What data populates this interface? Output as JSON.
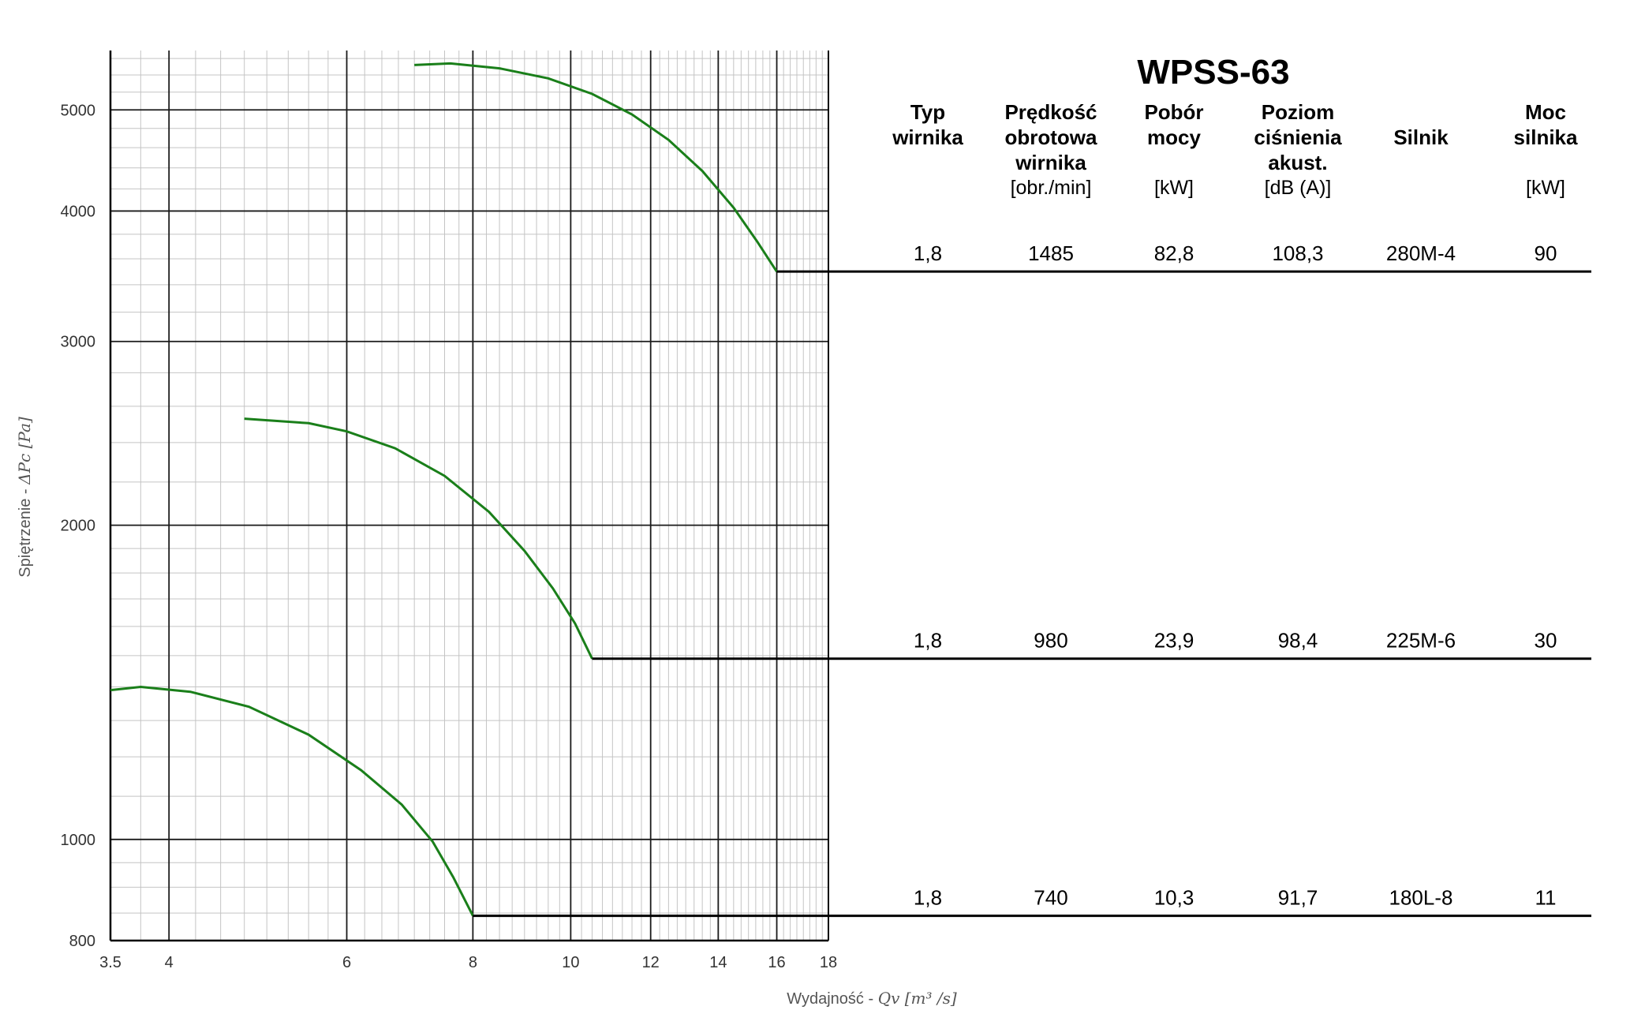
{
  "chart_data": {
    "type": "line",
    "title": "WPSS-63",
    "xlabel_text": "Wydajność - ",
    "xlabel_math": "Qv [m³ /s]",
    "ylabel_text": "Spiętrzenie - ",
    "ylabel_math": "ΔPc [Pa]",
    "x_scale": "log",
    "y_scale": "log",
    "xlim": [
      3.5,
      18
    ],
    "ylim": [
      800,
      5700
    ],
    "x_ticks": [
      3.5,
      4,
      6,
      8,
      10,
      12,
      14,
      16,
      18
    ],
    "x_tick_labels": [
      "3.5",
      "4",
      "6",
      "8",
      "10",
      "12",
      "14",
      "16",
      "18"
    ],
    "y_ticks": [
      800,
      1000,
      2000,
      3000,
      4000,
      5000
    ],
    "y_tick_labels": [
      "800",
      "1000",
      "2000",
      "3000",
      "4000",
      "5000"
    ],
    "grid": true,
    "curve_color": "#1a7f1a",
    "series": [
      {
        "values": [
          [
            7.0,
            5520
          ],
          [
            7.6,
            5540
          ],
          [
            8.5,
            5480
          ],
          [
            9.5,
            5360
          ],
          [
            10.5,
            5180
          ],
          [
            11.5,
            4950
          ],
          [
            12.5,
            4680
          ],
          [
            13.5,
            4370
          ],
          [
            14.5,
            4030
          ],
          [
            15.3,
            3740
          ],
          [
            16.0,
            3500
          ]
        ],
        "row": {
          "typ": "1,8",
          "speed": "1485",
          "power": "82,8",
          "noise": "108,3",
          "motor": "280M-4",
          "motor_power": "90"
        }
      },
      {
        "values": [
          [
            4.75,
            2530
          ],
          [
            5.5,
            2505
          ],
          [
            6.0,
            2460
          ],
          [
            6.7,
            2370
          ],
          [
            7.5,
            2230
          ],
          [
            8.3,
            2060
          ],
          [
            9.0,
            1890
          ],
          [
            9.6,
            1740
          ],
          [
            10.1,
            1610
          ],
          [
            10.5,
            1490
          ]
        ],
        "row": {
          "typ": "1,8",
          "speed": "980",
          "power": "23,9",
          "noise": "98,4",
          "motor": "225M-6",
          "motor_power": "30"
        }
      },
      {
        "values": [
          [
            3.5,
            1390
          ],
          [
            3.75,
            1400
          ],
          [
            4.2,
            1385
          ],
          [
            4.8,
            1340
          ],
          [
            5.5,
            1260
          ],
          [
            6.2,
            1165
          ],
          [
            6.8,
            1080
          ],
          [
            7.3,
            995
          ],
          [
            7.65,
            920
          ],
          [
            8.0,
            845
          ]
        ],
        "row": {
          "typ": "1,8",
          "speed": "740",
          "power": "10,3",
          "noise": "91,7",
          "motor": "180L-8",
          "motor_power": "11"
        }
      }
    ]
  },
  "table": {
    "headers": [
      {
        "lines": [
          "Typ",
          "wirnika"
        ],
        "unit": ""
      },
      {
        "lines": [
          "Prędkość",
          "obrotowa",
          "wirnika"
        ],
        "unit": "[obr./min]"
      },
      {
        "lines": [
          "Pobór",
          "mocy"
        ],
        "unit": "[kW]"
      },
      {
        "lines": [
          "Poziom",
          "ciśnienia",
          "akust."
        ],
        "unit": "[dB (A)]"
      },
      {
        "lines": [
          "Silnik"
        ],
        "unit": ""
      },
      {
        "lines": [
          "Moc",
          "silnika"
        ],
        "unit": "[kW]"
      }
    ]
  }
}
